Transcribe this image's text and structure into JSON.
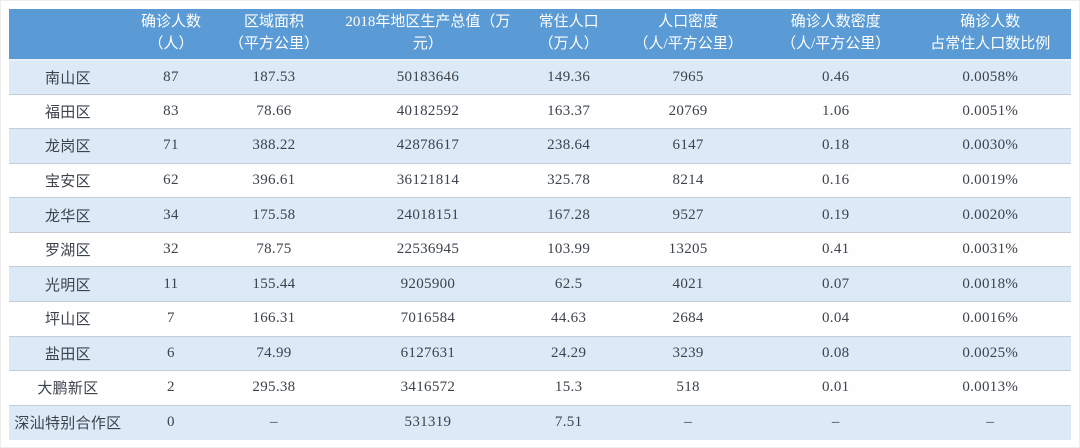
{
  "colors": {
    "header_bg": "#5B9BD5",
    "header_text": "#FFFFFF",
    "stripe_bg": "#DCE9F7",
    "row_bg": "#FEFEFE",
    "row_border": "#C6CCD4",
    "text_color": "#3C434B"
  },
  "chart_data": {
    "type": "table",
    "title": "",
    "layout": {
      "striped": true,
      "stripe_pattern": "odd-rows-shaded",
      "grid": "horizontal-only",
      "header_lines": 2
    },
    "columns": [
      {
        "id": "district",
        "line1": "",
        "line2": ""
      },
      {
        "id": "confirmed_cases",
        "line1": "确诊人数",
        "line2": "（人）"
      },
      {
        "id": "area_sqkm",
        "line1": "区域面积",
        "line2": "（平方公里）"
      },
      {
        "id": "gdp_2018",
        "line1": "2018年地区生产总值（万",
        "line2": "元）"
      },
      {
        "id": "resident_population",
        "line1": "常住人口",
        "line2": "（万人）"
      },
      {
        "id": "population_density",
        "line1": "人口密度",
        "line2": "（人/平方公里）"
      },
      {
        "id": "confirmed_density",
        "line1": "确诊人数密度",
        "line2": "（人/平方公里）"
      },
      {
        "id": "confirmed_ratio",
        "line1": "确诊人数",
        "line2": "占常住人口数比例"
      }
    ],
    "rows": [
      {
        "district": "南山区",
        "values": [
          "87",
          "187.53",
          "50183646",
          "149.36",
          "7965",
          "0.46",
          "0.0058%"
        ]
      },
      {
        "district": "福田区",
        "values": [
          "83",
          "78.66",
          "40182592",
          "163.37",
          "20769",
          "1.06",
          "0.0051%"
        ]
      },
      {
        "district": "龙岗区",
        "values": [
          "71",
          "388.22",
          "42878617",
          "238.64",
          "6147",
          "0.18",
          "0.0030%"
        ]
      },
      {
        "district": "宝安区",
        "values": [
          "62",
          "396.61",
          "36121814",
          "325.78",
          "8214",
          "0.16",
          "0.0019%"
        ]
      },
      {
        "district": "龙华区",
        "values": [
          "34",
          "175.58",
          "24018151",
          "167.28",
          "9527",
          "0.19",
          "0.0020%"
        ]
      },
      {
        "district": "罗湖区",
        "values": [
          "32",
          "78.75",
          "22536945",
          "103.99",
          "13205",
          "0.41",
          "0.0031%"
        ]
      },
      {
        "district": "光明区",
        "values": [
          "11",
          "155.44",
          "9205900",
          "62.5",
          "4021",
          "0.07",
          "0.0018%"
        ]
      },
      {
        "district": "坪山区",
        "values": [
          "7",
          "166.31",
          "7016584",
          "44.63",
          "2684",
          "0.04",
          "0.0016%"
        ]
      },
      {
        "district": "盐田区",
        "values": [
          "6",
          "74.99",
          "6127631",
          "24.29",
          "3239",
          "0.08",
          "0.0025%"
        ]
      },
      {
        "district": "大鹏新区",
        "values": [
          "2",
          "295.38",
          "3416572",
          "15.3",
          "518",
          "0.01",
          "0.0013%"
        ]
      },
      {
        "district": "深汕特别合作区",
        "values": [
          "0",
          "–",
          "531319",
          "7.51",
          "–",
          "–",
          "–"
        ]
      }
    ]
  }
}
